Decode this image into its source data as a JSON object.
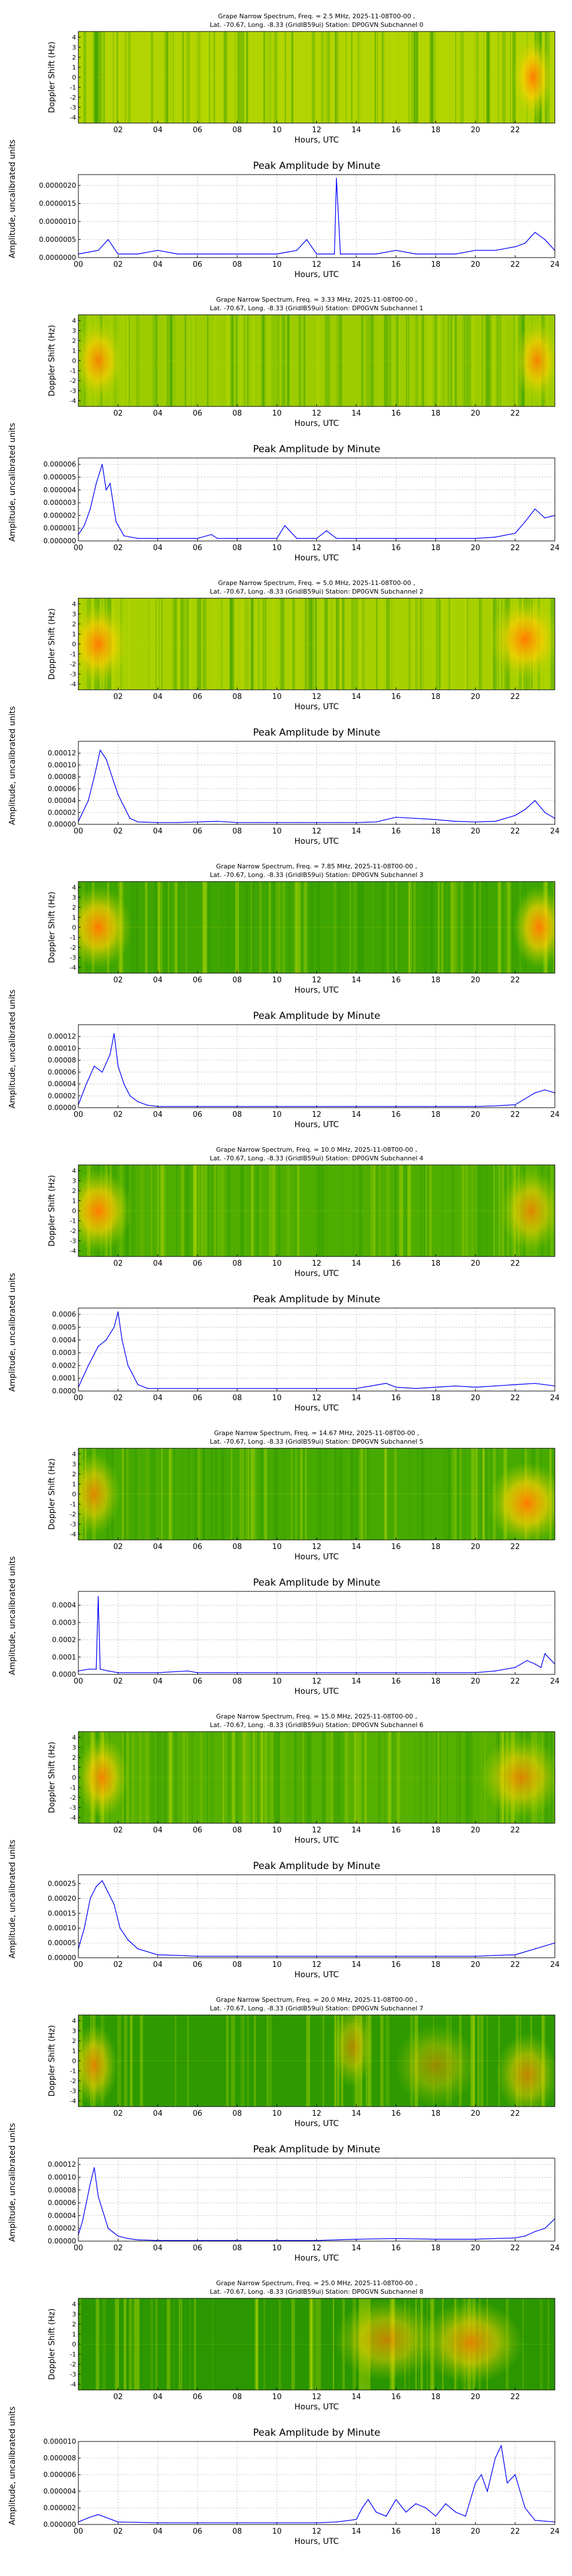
{
  "spectrum_xlabel": "Hours, UTC",
  "spectrum_ylabel": "Doppler Shift (Hz)",
  "spectrum_xticks": [
    "02",
    "04",
    "06",
    "08",
    "10",
    "12",
    "14",
    "16",
    "18",
    "20",
    "22"
  ],
  "spectrum_yticks": [
    "4",
    "3",
    "2",
    "1",
    "0",
    "-1",
    "-2",
    "-3",
    "-4"
  ],
  "amp_title": "Peak Amplitude by Minute",
  "amp_xlabel": "Hours, UTC",
  "amp_ylabel": "Amplitude, uncalibrated units",
  "amp_xticks": [
    "00",
    "02",
    "04",
    "06",
    "08",
    "10",
    "12",
    "14",
    "16",
    "18",
    "20",
    "22",
    "24"
  ],
  "colors": {
    "trace": "#0000ff",
    "grid": "#b0b0b0",
    "spec_base": "#2e9a00",
    "spec_mid": "#b6d800",
    "spec_hot": "#ff7a00"
  },
  "channels": [
    {
      "title_line1": "Grape Narrow Spectrum, Freq. = 2.5 MHz, 2025-11-08T00-00 ,",
      "title_line2": "Lat. -70.67, Long. -8.33 (GridIB59ui) Station: DP0GVN Subchannel 0",
      "amp_yticks": [
        "0.0000000",
        "0.0000005",
        "0.0000010",
        "0.0000015",
        "0.0000020"
      ],
      "spectrum": {
        "background": "#b2d400",
        "hotspots": [
          [
            22.9,
            0.5,
            0.8,
            1.0
          ]
        ]
      },
      "chart_data": {
        "type": "line",
        "x_unit": "hours UTC",
        "xlim": [
          0,
          24
        ],
        "ylim": [
          0,
          2.3e-06
        ],
        "x": [
          0,
          1,
          1.5,
          2,
          3,
          4,
          5,
          6,
          7,
          8,
          9,
          10,
          11,
          11.5,
          12,
          12.5,
          12.9,
          13,
          13.2,
          14,
          15,
          16,
          17,
          18,
          19,
          20,
          21,
          22,
          22.5,
          23,
          23.5,
          24
        ],
        "y": [
          1e-07,
          2e-07,
          5e-07,
          1e-07,
          1e-07,
          2e-07,
          1e-07,
          1e-07,
          1e-07,
          1e-07,
          1e-07,
          1e-07,
          2e-07,
          5e-07,
          1e-07,
          1e-07,
          1e-07,
          2.2e-06,
          1e-07,
          1e-07,
          1e-07,
          2e-07,
          1e-07,
          1e-07,
          1e-07,
          2e-07,
          2e-07,
          3e-07,
          4e-07,
          7e-07,
          5e-07,
          2e-07
        ]
      }
    },
    {
      "title_line1": "Grape Narrow Spectrum, Freq. = 3.33 MHz, 2025-11-08T00-00 ,",
      "title_line2": "Lat. -70.67, Long. -8.33 (GridIB59ui) Station: DP0GVN Subchannel 1",
      "amp_yticks": [
        "0.000000",
        "0.000001",
        "0.000002",
        "0.000003",
        "0.000004",
        "0.000005",
        "0.000006"
      ],
      "spectrum": {
        "background": "#9ccc00",
        "hotspots": [
          [
            1.0,
            0.5,
            1.0,
            0.9
          ],
          [
            23.1,
            0.5,
            0.9,
            0.9
          ]
        ]
      },
      "chart_data": {
        "type": "line",
        "x_unit": "hours UTC",
        "xlim": [
          0,
          24
        ],
        "ylim": [
          0,
          6.5e-06
        ],
        "x": [
          0,
          0.3,
          0.6,
          0.9,
          1.2,
          1.4,
          1.6,
          1.9,
          2.3,
          3,
          4,
          5,
          6,
          6.7,
          7,
          8,
          9,
          10,
          10.4,
          11,
          12,
          12.5,
          13,
          14,
          15,
          16,
          17,
          18,
          19,
          20,
          21,
          22,
          22.5,
          23,
          23.5,
          24
        ],
        "y": [
          5e-07,
          1.2e-06,
          2.5e-06,
          4.5e-06,
          6e-06,
          4e-06,
          4.5e-06,
          1.5e-06,
          4e-07,
          2e-07,
          2e-07,
          2e-07,
          2e-07,
          5e-07,
          2e-07,
          2e-07,
          2e-07,
          2e-07,
          1.2e-06,
          2e-07,
          2e-07,
          8e-07,
          2e-07,
          2e-07,
          2e-07,
          2e-07,
          2e-07,
          2e-07,
          2e-07,
          2e-07,
          3e-07,
          6e-07,
          1.5e-06,
          2.5e-06,
          1.8e-06,
          2e-06
        ]
      }
    },
    {
      "title_line1": "Grape Narrow Spectrum, Freq. = 5.0 MHz, 2025-11-08T00-00 ,",
      "title_line2": "Lat. -70.67, Long. -8.33 (GridIB59ui) Station: DP0GVN Subchannel 2",
      "amp_yticks": [
        "0.00000",
        "0.00002",
        "0.00004",
        "0.00006",
        "0.00008",
        "0.00010",
        "0.00012"
      ],
      "spectrum": {
        "background": "#a8d000",
        "hotspots": [
          [
            1.0,
            0.5,
            1.2,
            1.0
          ],
          [
            22.5,
            0.45,
            1.4,
            1.0
          ]
        ]
      },
      "chart_data": {
        "type": "line",
        "x_unit": "hours UTC",
        "xlim": [
          0,
          24
        ],
        "ylim": [
          0,
          0.00014
        ],
        "x": [
          0,
          0.5,
          0.8,
          1.1,
          1.4,
          1.7,
          2,
          2.3,
          2.6,
          3,
          4,
          5,
          6,
          7,
          8,
          9,
          10,
          11,
          12,
          13,
          14,
          15,
          16,
          17,
          18,
          19,
          20,
          21,
          22,
          22.5,
          23,
          23.5,
          24
        ],
        "y": [
          5e-06,
          4e-05,
          8e-05,
          0.000125,
          0.00011,
          8e-05,
          5e-05,
          3e-05,
          1e-05,
          4e-06,
          3e-06,
          3e-06,
          4e-06,
          5e-06,
          3e-06,
          3e-06,
          3e-06,
          3e-06,
          3e-06,
          3e-06,
          3e-06,
          4e-06,
          1.2e-05,
          1e-05,
          8e-06,
          5e-06,
          4e-06,
          5e-06,
          1.5e-05,
          2.5e-05,
          4e-05,
          2e-05,
          1e-05
        ]
      }
    },
    {
      "title_line1": "Grape Narrow Spectrum, Freq. = 7.85 MHz, 2025-11-08T00-00 ,",
      "title_line2": "Lat. -70.67, Long. -8.33 (GridIB59ui) Station: DP0GVN Subchannel 3",
      "amp_yticks": [
        "0.00000",
        "0.00002",
        "0.00004",
        "0.00006",
        "0.00008",
        "0.00010",
        "0.00012"
      ],
      "spectrum": {
        "background": "#3fa500",
        "hotspots": [
          [
            1.0,
            0.5,
            1.3,
            1.0
          ],
          [
            23.2,
            0.5,
            1.0,
            1.0
          ]
        ]
      },
      "chart_data": {
        "type": "line",
        "x_unit": "hours UTC",
        "xlim": [
          0,
          24
        ],
        "ylim": [
          0,
          0.00014
        ],
        "x": [
          0,
          0.4,
          0.8,
          1.2,
          1.6,
          1.8,
          2,
          2.3,
          2.6,
          3,
          3.5,
          4,
          6,
          8,
          10,
          12,
          14,
          16,
          18,
          20,
          21,
          22,
          22.5,
          23,
          23.5,
          24
        ],
        "y": [
          5e-06,
          4e-05,
          7e-05,
          6e-05,
          9e-05,
          0.000125,
          7e-05,
          4e-05,
          2e-05,
          1e-05,
          4e-06,
          2e-06,
          2e-06,
          2e-06,
          2e-06,
          2e-06,
          2e-06,
          2e-06,
          2e-06,
          2e-06,
          3e-06,
          5e-06,
          1.5e-05,
          2.5e-05,
          3e-05,
          2.5e-05
        ]
      }
    },
    {
      "title_line1": "Grape Narrow Spectrum, Freq. = 10.0 MHz, 2025-11-08T00-00 ,",
      "title_line2": "Lat. -70.67, Long. -8.33 (GridIB59ui) Station: DP0GVN Subchannel 4",
      "amp_yticks": [
        "0.0000",
        "0.0001",
        "0.0002",
        "0.0003",
        "0.0004",
        "0.0005",
        "0.0006"
      ],
      "spectrum": {
        "background": "#4fae00",
        "hotspots": [
          [
            1.0,
            0.5,
            1.3,
            1.0
          ],
          [
            22.8,
            0.5,
            1.2,
            0.8
          ]
        ]
      },
      "chart_data": {
        "type": "line",
        "x_unit": "hours UTC",
        "xlim": [
          0,
          24
        ],
        "ylim": [
          0,
          0.00065
        ],
        "x": [
          0,
          0.5,
          1,
          1.4,
          1.8,
          2,
          2.2,
          2.5,
          3,
          3.5,
          4,
          6,
          8,
          10,
          12,
          14,
          15.5,
          16,
          17,
          18,
          19,
          20,
          21,
          22,
          23,
          24
        ],
        "y": [
          3e-05,
          0.0002,
          0.00035,
          0.0004,
          0.0005,
          0.00062,
          0.0004,
          0.0002,
          5e-05,
          2e-05,
          2e-05,
          2e-05,
          2e-05,
          2e-05,
          2e-05,
          2e-05,
          6e-05,
          3e-05,
          2e-05,
          3e-05,
          4e-05,
          3e-05,
          4e-05,
          5e-05,
          6e-05,
          4e-05
        ]
      }
    },
    {
      "title_line1": "Grape Narrow Spectrum, Freq. = 14.67 MHz, 2025-11-08T00-00 ,",
      "title_line2": "Lat. -70.67, Long. -8.33 (GridIB59ui) Station: DP0GVN Subchannel 5",
      "amp_yticks": [
        "0.0000",
        "0.0001",
        "0.0002",
        "0.0003",
        "0.0004"
      ],
      "spectrum": {
        "background": "#47aa00",
        "hotspots": [
          [
            0.8,
            0.5,
            1.0,
            0.8
          ],
          [
            22.6,
            0.6,
            1.5,
            1.0
          ]
        ]
      },
      "chart_data": {
        "type": "line",
        "x_unit": "hours UTC",
        "xlim": [
          0,
          24
        ],
        "ylim": [
          0,
          0.00048
        ],
        "x": [
          0,
          0.5,
          0.9,
          1,
          1.1,
          1.5,
          2,
          4,
          5.5,
          6,
          7,
          8,
          10,
          12,
          14,
          16,
          18,
          20,
          21,
          22,
          22.6,
          23,
          23.3,
          23.5,
          24
        ],
        "y": [
          2e-05,
          3e-05,
          3e-05,
          0.00045,
          3e-05,
          2e-05,
          1e-05,
          1e-05,
          2e-05,
          1e-05,
          1e-05,
          1e-05,
          1e-05,
          1e-05,
          1e-05,
          1e-05,
          1e-05,
          1e-05,
          2e-05,
          4e-05,
          8e-05,
          6e-05,
          4e-05,
          0.00012,
          6e-05
        ]
      }
    },
    {
      "title_line1": "Grape Narrow Spectrum, Freq. = 15.0 MHz, 2025-11-08T00-00 ,",
      "title_line2": "Lat. -70.67, Long. -8.33 (GridIB59ui) Station: DP0GVN Subchannel 6",
      "amp_yticks": [
        "0.00000",
        "0.00005",
        "0.00010",
        "0.00015",
        "0.00020",
        "0.00025"
      ],
      "spectrum": {
        "background": "#56b000",
        "hotspots": [
          [
            1.2,
            0.5,
            1.0,
            0.9
          ],
          [
            22.3,
            0.5,
            1.6,
            0.8
          ]
        ]
      },
      "chart_data": {
        "type": "line",
        "x_unit": "hours UTC",
        "xlim": [
          0,
          24
        ],
        "ylim": [
          0,
          0.00028
        ],
        "x": [
          0,
          0.3,
          0.6,
          0.9,
          1.2,
          1.5,
          1.8,
          2.1,
          2.5,
          3,
          3.5,
          4,
          5,
          6,
          8,
          10,
          12,
          14,
          16,
          18,
          20,
          21,
          22,
          23,
          24
        ],
        "y": [
          3e-05,
          0.0001,
          0.0002,
          0.00024,
          0.00026,
          0.00022,
          0.00018,
          0.0001,
          6e-05,
          3e-05,
          2e-05,
          1e-05,
          8e-06,
          5e-06,
          5e-06,
          5e-06,
          5e-06,
          5e-06,
          5e-06,
          5e-06,
          5e-06,
          8e-06,
          1e-05,
          3e-05,
          5e-05
        ]
      }
    },
    {
      "title_line1": "Grape Narrow Spectrum, Freq. = 20.0 MHz, 2025-11-08T00-00 ,",
      "title_line2": "Lat. -70.67, Long. -8.33 (GridIB59ui) Station: DP0GVN Subchannel 7",
      "amp_yticks": [
        "0.00000",
        "0.00002",
        "0.00004",
        "0.00006",
        "0.00008",
        "0.00010",
        "0.00012"
      ],
      "spectrum": {
        "background": "#2e9a00",
        "hotspots": [
          [
            0.8,
            0.55,
            0.9,
            0.8
          ],
          [
            13.8,
            0.35,
            0.8,
            0.6
          ],
          [
            18.0,
            0.55,
            1.6,
            0.5
          ],
          [
            22.6,
            0.65,
            1.2,
            0.7
          ]
        ]
      },
      "chart_data": {
        "type": "line",
        "x_unit": "hours UTC",
        "xlim": [
          0,
          24
        ],
        "ylim": [
          0,
          0.00013
        ],
        "x": [
          0,
          0.2,
          0.4,
          0.6,
          0.8,
          1,
          1.2,
          1.5,
          2,
          2.5,
          3,
          4,
          6,
          8,
          10,
          12,
          14,
          16,
          18,
          20,
          21,
          22,
          22.5,
          23,
          23.5,
          24
        ],
        "y": [
          1e-05,
          3e-05,
          6e-05,
          9e-05,
          0.000115,
          7e-05,
          5e-05,
          2e-05,
          8e-06,
          4e-06,
          2e-06,
          1e-06,
          1e-06,
          1e-06,
          1e-06,
          1e-06,
          3e-06,
          4e-06,
          3e-06,
          3e-06,
          4e-06,
          5e-06,
          8e-06,
          1.5e-05,
          2e-05,
          3.5e-05
        ]
      }
    },
    {
      "title_line1": "Grape Narrow Spectrum, Freq. = 25.0 MHz, 2025-11-08T00-00 ,",
      "title_line2": "Lat. -70.67, Long. -8.33 (GridIB59ui) Station: DP0GVN Subchannel 8",
      "amp_yticks": [
        "0.000000",
        "0.000002",
        "0.000004",
        "0.000006",
        "0.000008",
        "0.000010"
      ],
      "spectrum": {
        "background": "#2a9600",
        "hotspots": [
          [
            15.5,
            0.45,
            2.0,
            0.7
          ],
          [
            19.8,
            0.48,
            2.0,
            0.8
          ]
        ]
      },
      "chart_data": {
        "type": "line",
        "x_unit": "hours UTC",
        "xlim": [
          0,
          24
        ],
        "ylim": [
          0,
          1e-05
        ],
        "x": [
          0,
          0.5,
          1,
          2,
          4,
          6,
          8,
          10,
          12,
          13,
          14,
          14.3,
          14.6,
          15,
          15.5,
          16,
          16.5,
          17,
          17.5,
          18,
          18.5,
          19,
          19.5,
          20,
          20.3,
          20.6,
          21,
          21.3,
          21.6,
          22,
          22.5,
          23,
          24
        ],
        "y": [
          3e-07,
          8e-07,
          1.2e-06,
          3e-07,
          2e-07,
          2e-07,
          2e-07,
          2e-07,
          2e-07,
          3e-07,
          6e-07,
          2e-06,
          3e-06,
          1.5e-06,
          1e-06,
          3e-06,
          1.5e-06,
          2.5e-06,
          2e-06,
          1e-06,
          2.5e-06,
          1.5e-06,
          1e-06,
          5e-06,
          6e-06,
          4e-06,
          8e-06,
          9.5e-06,
          5e-06,
          6e-06,
          2e-06,
          5e-07,
          3e-07
        ]
      }
    }
  ]
}
